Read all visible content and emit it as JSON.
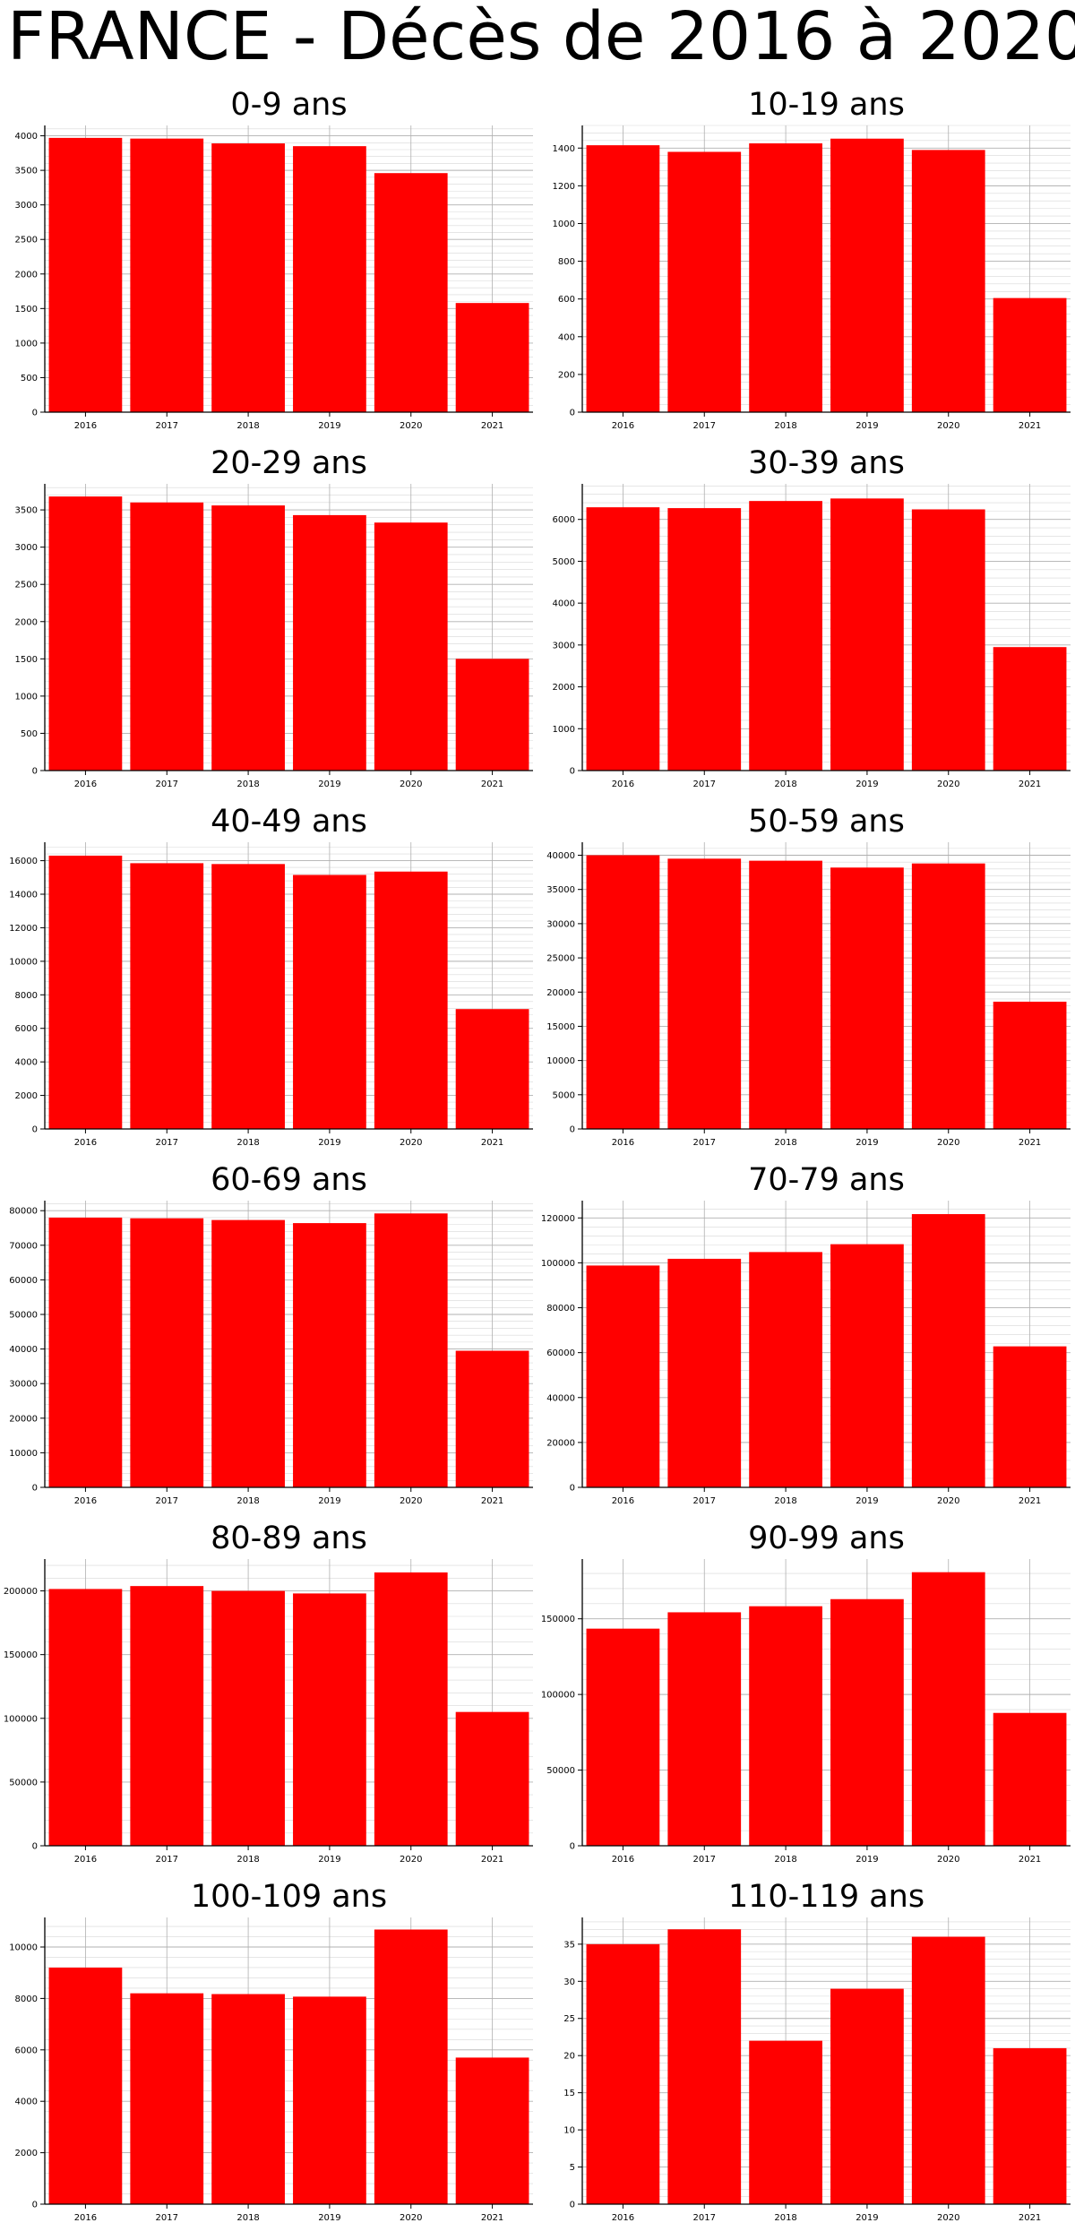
{
  "title": "FRANCE - Décès de 2016 à 2020",
  "colors": {
    "bar": "#ff0000",
    "axis": "#000000",
    "grid_major": "#b0b0b0",
    "grid_minor": "#d8d8d8"
  },
  "chart_data": [
    {
      "type": "bar",
      "title": "0-9 ans",
      "categories": [
        "2016",
        "2017",
        "2018",
        "2019",
        "2020",
        "2021"
      ],
      "values": [
        3970,
        3960,
        3890,
        3850,
        3460,
        1580
      ],
      "ylim": [
        0,
        4150
      ],
      "yticks": [
        0,
        500,
        1000,
        1500,
        2000,
        2500,
        3000,
        3500,
        4000
      ],
      "grid": true
    },
    {
      "type": "bar",
      "title": "10-19 ans",
      "categories": [
        "2016",
        "2017",
        "2018",
        "2019",
        "2020",
        "2021"
      ],
      "values": [
        1415,
        1380,
        1425,
        1450,
        1390,
        605
      ],
      "ylim": [
        0,
        1520
      ],
      "yticks": [
        0,
        200,
        400,
        600,
        800,
        1000,
        1200,
        1400
      ],
      "grid": true
    },
    {
      "type": "bar",
      "title": "20-29 ans",
      "categories": [
        "2016",
        "2017",
        "2018",
        "2019",
        "2020",
        "2021"
      ],
      "values": [
        3680,
        3600,
        3560,
        3430,
        3330,
        1500
      ],
      "ylim": [
        0,
        3850
      ],
      "yticks": [
        0,
        500,
        1000,
        1500,
        2000,
        2500,
        3000,
        3500
      ],
      "grid": true
    },
    {
      "type": "bar",
      "title": "30-39 ans",
      "categories": [
        "2016",
        "2017",
        "2018",
        "2019",
        "2020",
        "2021"
      ],
      "values": [
        6290,
        6270,
        6440,
        6500,
        6240,
        2950
      ],
      "ylim": [
        0,
        6850
      ],
      "yticks": [
        0,
        1000,
        2000,
        3000,
        4000,
        5000,
        6000
      ],
      "grid": true
    },
    {
      "type": "bar",
      "title": "40-49 ans",
      "categories": [
        "2016",
        "2017",
        "2018",
        "2019",
        "2020",
        "2021"
      ],
      "values": [
        16300,
        15850,
        15800,
        15150,
        15350,
        7150
      ],
      "ylim": [
        0,
        17100
      ],
      "yticks": [
        0,
        2000,
        4000,
        6000,
        8000,
        10000,
        12000,
        14000,
        16000
      ],
      "grid": true
    },
    {
      "type": "bar",
      "title": "50-59 ans",
      "categories": [
        "2016",
        "2017",
        "2018",
        "2019",
        "2020",
        "2021"
      ],
      "values": [
        40000,
        39500,
        39200,
        38200,
        38800,
        18600
      ],
      "ylim": [
        0,
        41900
      ],
      "yticks": [
        0,
        5000,
        10000,
        15000,
        20000,
        25000,
        30000,
        35000,
        40000
      ],
      "grid": true
    },
    {
      "type": "bar",
      "title": "60-69 ans",
      "categories": [
        "2016",
        "2017",
        "2018",
        "2019",
        "2020",
        "2021"
      ],
      "values": [
        78000,
        77800,
        77300,
        76400,
        79200,
        39500
      ],
      "ylim": [
        0,
        82900
      ],
      "yticks": [
        0,
        10000,
        20000,
        30000,
        40000,
        50000,
        60000,
        70000,
        80000
      ],
      "grid": true
    },
    {
      "type": "bar",
      "title": "70-79 ans",
      "categories": [
        "2016",
        "2017",
        "2018",
        "2019",
        "2020",
        "2021"
      ],
      "values": [
        98800,
        101800,
        104800,
        108300,
        121700,
        62800
      ],
      "ylim": [
        0,
        127700
      ],
      "yticks": [
        0,
        20000,
        40000,
        60000,
        80000,
        100000,
        120000
      ],
      "grid": true
    },
    {
      "type": "bar",
      "title": "80-89 ans",
      "categories": [
        "2016",
        "2017",
        "2018",
        "2019",
        "2020",
        "2021"
      ],
      "values": [
        201500,
        203800,
        200000,
        198000,
        214500,
        105000
      ],
      "ylim": [
        0,
        225000
      ],
      "yticks": [
        0,
        50000,
        100000,
        150000,
        200000
      ],
      "grid": true
    },
    {
      "type": "bar",
      "title": "90-99 ans",
      "categories": [
        "2016",
        "2017",
        "2018",
        "2019",
        "2020",
        "2021"
      ],
      "values": [
        143500,
        154300,
        158300,
        163000,
        180800,
        87800
      ],
      "ylim": [
        0,
        189500
      ],
      "yticks": [
        0,
        50000,
        100000,
        150000
      ],
      "grid": true
    },
    {
      "type": "bar",
      "title": "100-109 ans",
      "categories": [
        "2016",
        "2017",
        "2018",
        "2019",
        "2020",
        "2021"
      ],
      "values": [
        9200,
        8200,
        8170,
        8070,
        10680,
        5700
      ],
      "ylim": [
        0,
        11150
      ],
      "yticks": [
        0,
        2000,
        4000,
        6000,
        8000,
        10000
      ],
      "grid": true
    },
    {
      "type": "bar",
      "title": "110-119 ans",
      "categories": [
        "2016",
        "2017",
        "2018",
        "2019",
        "2020",
        "2021"
      ],
      "values": [
        35,
        37,
        22,
        29,
        36,
        21
      ],
      "ylim": [
        0,
        38.6
      ],
      "yticks": [
        0,
        5,
        10,
        15,
        20,
        25,
        30,
        35
      ],
      "grid": true
    }
  ]
}
